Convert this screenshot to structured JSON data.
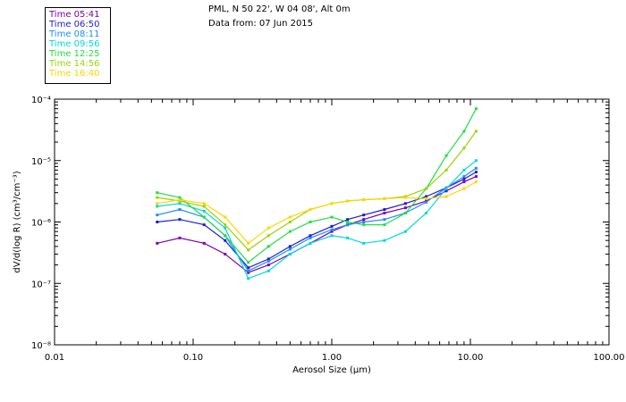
{
  "title": {
    "line1": "PML, N 50 22', W 04 08', Alt 0m",
    "line2": "Data from: 07 Jun 2015"
  },
  "legend": [
    {
      "label": "Time 05:41",
      "color": "#7f00b0"
    },
    {
      "label": "Time 06:50",
      "color": "#1c1cd6"
    },
    {
      "label": "Time 08:11",
      "color": "#1a8cff"
    },
    {
      "label": "Time 09:56",
      "color": "#00d8d8"
    },
    {
      "label": "Time 12:25",
      "color": "#22dd44"
    },
    {
      "label": "Time 14:56",
      "color": "#9ad400"
    },
    {
      "label": "Time 16:40",
      "color": "#ffd400"
    }
  ],
  "chart_data": {
    "type": "line",
    "title": "PML, N 50 22', W 04 08', Alt 0m",
    "subtitle": "Data from: 07 Jun 2015",
    "xlabel": "Aerosol Size (µm)",
    "ylabel": "dV/d(log R) (cm³/cm⁻³)",
    "xscale": "log",
    "yscale": "log",
    "xlim": [
      0.01,
      100
    ],
    "ylim": [
      1e-08,
      0.0001
    ],
    "x_ticks": [
      "0.01",
      "0.10",
      "1.00",
      "10.00",
      "100.00"
    ],
    "y_ticks": [
      "10⁻⁸",
      "10⁻⁷",
      "10⁻⁶",
      "10⁻⁵",
      "10⁻⁴"
    ],
    "x": [
      0.055,
      0.08,
      0.12,
      0.17,
      0.25,
      0.35,
      0.5,
      0.7,
      1.0,
      1.3,
      1.7,
      2.4,
      3.4,
      4.8,
      6.7,
      9.0,
      11.0
    ],
    "series": [
      {
        "name": "Time 05:41",
        "color": "#7f00b0",
        "values": [
          4.5e-07,
          5.5e-07,
          4.5e-07,
          3e-07,
          1.5e-07,
          2e-07,
          3e-07,
          4.5e-07,
          7e-07,
          9e-07,
          1.1e-06,
          1.4e-06,
          1.7e-06,
          2.2e-06,
          3.2e-06,
          4.5e-06,
          5.5e-06
        ]
      },
      {
        "name": "Time 06:50",
        "color": "#1c1cd6",
        "values": [
          1e-06,
          1.1e-06,
          9e-07,
          5e-07,
          1.8e-07,
          2.5e-07,
          4e-07,
          6e-07,
          8.5e-07,
          1.1e-06,
          1.3e-06,
          1.6e-06,
          2e-06,
          2.6e-06,
          3.6e-06,
          5e-06,
          6.5e-06
        ]
      },
      {
        "name": "Time 08:11",
        "color": "#1a8cff",
        "values": [
          1.3e-06,
          1.6e-06,
          1.2e-06,
          6e-07,
          1.6e-07,
          2.3e-07,
          3.6e-07,
          5.5e-07,
          7.5e-07,
          9e-07,
          1e-06,
          1.1e-06,
          1.4e-06,
          2.1e-06,
          3.6e-06,
          5.5e-06,
          7.5e-06
        ]
      },
      {
        "name": "Time 09:56",
        "color": "#00d8d8",
        "values": [
          1.8e-06,
          2e-06,
          1.5e-06,
          8e-07,
          1.2e-07,
          1.6e-07,
          3e-07,
          4.5e-07,
          6e-07,
          5.5e-07,
          4.5e-07,
          5e-07,
          7e-07,
          1.4e-06,
          3.5e-06,
          7e-06,
          1e-05
        ]
      },
      {
        "name": "Time 12:25",
        "color": "#22dd44",
        "values": [
          3e-06,
          2.5e-06,
          1.2e-06,
          6e-07,
          2.2e-07,
          4e-07,
          7e-07,
          1e-06,
          1.2e-06,
          1e-06,
          9e-07,
          9e-07,
          1.4e-06,
          3.5e-06,
          1.2e-05,
          3e-05,
          7e-05
        ]
      },
      {
        "name": "Time 14:56",
        "color": "#9ad400",
        "values": [
          2.5e-06,
          2.2e-06,
          1.8e-06,
          9e-07,
          3.5e-07,
          6e-07,
          1e-06,
          1.6e-06,
          2e-06,
          2.2e-06,
          2.3e-06,
          2.4e-06,
          2.6e-06,
          3.5e-06,
          7e-06,
          1.6e-05,
          3e-05
        ]
      },
      {
        "name": "Time 16:40",
        "color": "#ffd400",
        "values": [
          2e-06,
          2.3e-06,
          2e-06,
          1.2e-06,
          4.5e-07,
          8e-07,
          1.2e-06,
          1.6e-06,
          2e-06,
          2.2e-06,
          2.3e-06,
          2.4e-06,
          2.5e-06,
          2.4e-06,
          2.6e-06,
          3.5e-06,
          4.5e-06
        ]
      }
    ]
  }
}
